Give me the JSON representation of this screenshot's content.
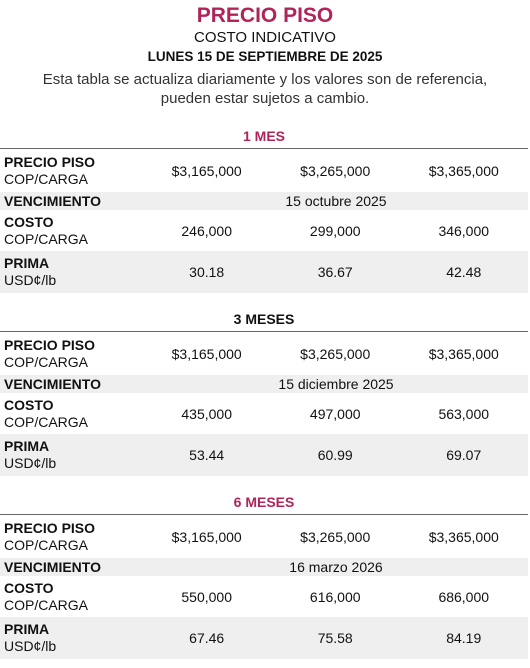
{
  "header": {
    "title": "PRECIO PISO",
    "subtitle": "COSTO INDICATIVO",
    "date": "LUNES 15 DE SEPTIEMBRE DE 2025",
    "description": [
      "Esta tabla se actualiza diariamente y los valores son de referencia,",
      "pueden estar sujetos a cambio."
    ]
  },
  "sections": [
    {
      "title": "1 MES",
      "rows": [
        {
          "label": "PRECIO PISO",
          "unit": "COP/CARGA",
          "values": [
            "$3,165,000",
            "$3,265,000",
            "$3,365,000"
          ]
        },
        {
          "label": "VENCIMIENTO",
          "values": [
            "15 octubre 2025"
          ]
        },
        {
          "label": "COSTO",
          "unit": "COP/CARGA",
          "values": [
            "246,000",
            "299,000",
            "346,000"
          ]
        },
        {
          "label": "PRIMA",
          "unit": "USD¢/lb",
          "values": [
            "30.18",
            "36.67",
            "42.48"
          ]
        }
      ]
    },
    {
      "title": "3 MESES",
      "rows": [
        {
          "label": "PRECIO PISO",
          "unit": "COP/CARGA",
          "values": [
            "$3,165,000",
            "$3,265,000",
            "$3,365,000"
          ]
        },
        {
          "label": "VENCIMIENTO",
          "values": [
            "15 diciembre 2025"
          ]
        },
        {
          "label": "COSTO",
          "unit": "COP/CARGA",
          "values": [
            "435,000",
            "497,000",
            "563,000"
          ]
        },
        {
          "label": "PRIMA",
          "unit": "USD¢/lb",
          "values": [
            "53.44",
            "60.99",
            "69.07"
          ]
        }
      ]
    },
    {
      "title": "6 MESES",
      "rows": [
        {
          "label": "PRECIO PISO",
          "unit": "COP/CARGA",
          "values": [
            "$3,165,000",
            "$3,265,000",
            "$3,365,000"
          ]
        },
        {
          "label": "VENCIMIENTO",
          "values": [
            "16 marzo 2026"
          ]
        },
        {
          "label": "COSTO",
          "unit": "COP/CARGA",
          "values": [
            "550,000",
            "616,000",
            "686,000"
          ]
        },
        {
          "label": "PRIMA",
          "unit": "USD¢/lb",
          "values": [
            "67.46",
            "75.58",
            "84.19"
          ]
        }
      ]
    }
  ]
}
